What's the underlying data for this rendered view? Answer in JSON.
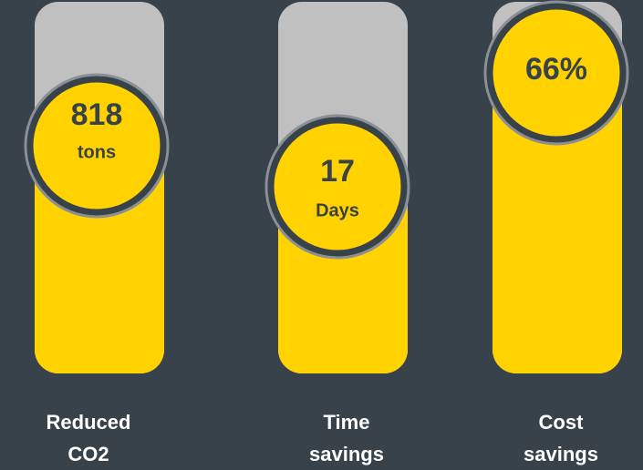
{
  "items": [
    {
      "value": "818",
      "unit": "tons",
      "label": [
        "Reduced",
        "CO2"
      ]
    },
    {
      "value": "17",
      "unit": "Days",
      "label": [
        "Time",
        "savings"
      ]
    },
    {
      "value": "66%",
      "label": [
        "Cost",
        "savings"
      ]
    }
  ]
}
